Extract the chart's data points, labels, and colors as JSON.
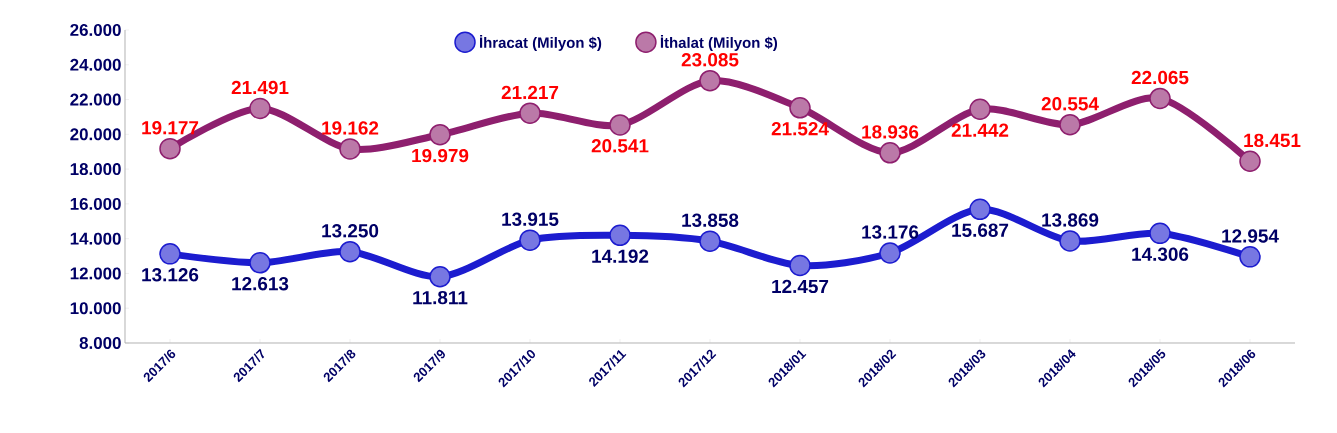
{
  "chart_data": {
    "type": "line",
    "categories": [
      "2017/6",
      "2017/7",
      "2017/8",
      "2017/9",
      "2017/10",
      "2017/11",
      "2017/12",
      "2018/01",
      "2018/02",
      "2018/03",
      "2018/04",
      "2018/05",
      "2018/06"
    ],
    "series": [
      {
        "name": "İhracat (Milyon $)",
        "color": "#1c1ccf",
        "values": [
          13126,
          12613,
          13250,
          11811,
          13915,
          14192,
          13858,
          12457,
          13176,
          15687,
          13869,
          14306,
          12954
        ],
        "value_labels": [
          "13.126",
          "12.613",
          "13.250",
          "11.811",
          "13.915",
          "14.192",
          "13.858",
          "12.457",
          "13.176",
          "15.687",
          "13.869",
          "14.306",
          "12.954"
        ]
      },
      {
        "name": "İthalat (Milyon $)",
        "color": "#8e1f6e",
        "values": [
          19177,
          21491,
          19162,
          19979,
          21217,
          20541,
          23085,
          21524,
          18936,
          21442,
          20554,
          22065,
          18451
        ],
        "value_labels": [
          "19.177",
          "21.491",
          "19.162",
          "19.979",
          "21.217",
          "20.541",
          "23.085",
          "21.524",
          "18.936",
          "21.442",
          "20.554",
          "22.065",
          "18.451"
        ]
      }
    ],
    "ylim": [
      8000,
      26000
    ],
    "yticks": [
      {
        "value": 8000,
        "label": "8.000"
      },
      {
        "value": 10000,
        "label": "10.000"
      },
      {
        "value": 12000,
        "label": "12.000"
      },
      {
        "value": 14000,
        "label": "14.000"
      },
      {
        "value": 16000,
        "label": "16.000"
      },
      {
        "value": 18000,
        "label": "18.000"
      },
      {
        "value": 20000,
        "label": "20.000"
      },
      {
        "value": 22000,
        "label": "22.000"
      },
      {
        "value": 24000,
        "label": "24.000"
      },
      {
        "value": 26000,
        "label": "26.000"
      }
    ],
    "marker": "circle",
    "legend": "top"
  }
}
